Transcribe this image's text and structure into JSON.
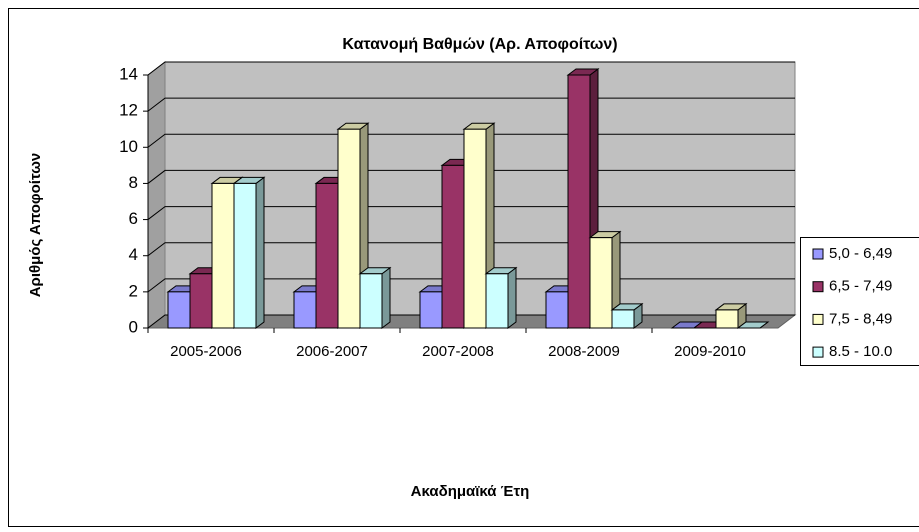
{
  "chart_data": {
    "type": "bar3d",
    "title": "Κατανομή Βαθμών (Αρ. Αποφοίτων)",
    "y_label": "Αριθμός Αποφοίτων",
    "x_label": "Ακαδημαϊκά Έτη",
    "categories": [
      "2005-2006",
      "2006-2007",
      "2007-2008",
      "2008-2009",
      "2009-2010"
    ],
    "series": [
      {
        "name": "5,0 - 6,49",
        "color": "#9999ff",
        "values": [
          2,
          2,
          2,
          2,
          0
        ]
      },
      {
        "name": "6,5 - 7,49",
        "color": "#993366",
        "values": [
          3,
          8,
          9,
          14,
          0
        ]
      },
      {
        "name": "7,5 - 8,49",
        "color": "#ffffcc",
        "values": [
          8,
          11,
          11,
          5,
          1
        ]
      },
      {
        "name": "8.5 - 10.0",
        "color": "#ccffff",
        "values": [
          8,
          3,
          3,
          1,
          0
        ]
      }
    ],
    "ylim": [
      0,
      14
    ],
    "yticks": [
      0,
      2,
      4,
      6,
      8,
      10,
      12,
      14
    ],
    "grid": true,
    "legend": "right"
  }
}
